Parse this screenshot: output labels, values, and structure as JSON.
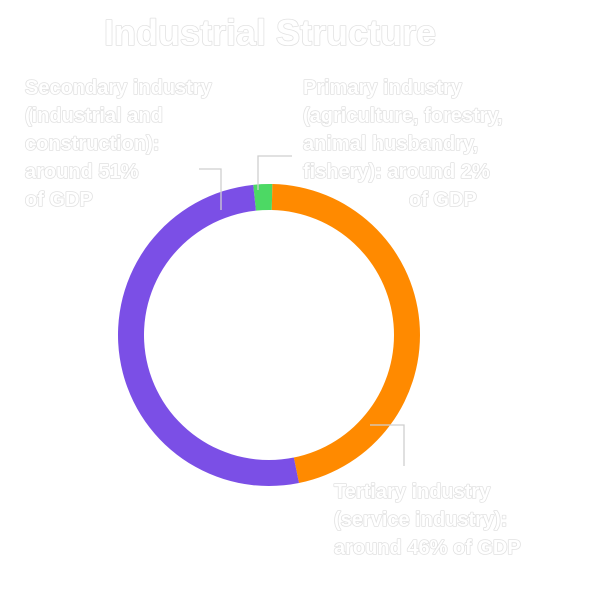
{
  "chart_data": {
    "type": "pie",
    "variant": "donut",
    "title": "Industrial Structure",
    "slices": [
      {
        "name": "Primary industry",
        "value": 2,
        "color": "#4cd964",
        "label_lines": [
          "Primary industry",
          "(agriculture, forestry,",
          "animal husbandry,",
          "fishery): around 2%",
          "of GDP"
        ]
      },
      {
        "name": "Tertiary industry",
        "value": 46,
        "color": "#ff8a00",
        "label_lines": [
          "Tertiary industry",
          "(service industry):",
          "around 46% of GDP"
        ]
      },
      {
        "name": "Secondary industry",
        "value": 51,
        "color": "#7b4fe6",
        "label_lines": [
          "Secondary industry",
          "(industrial and",
          "construction):",
          "around 51%",
          "of GDP"
        ]
      }
    ],
    "legend": "none",
    "grid": false
  }
}
